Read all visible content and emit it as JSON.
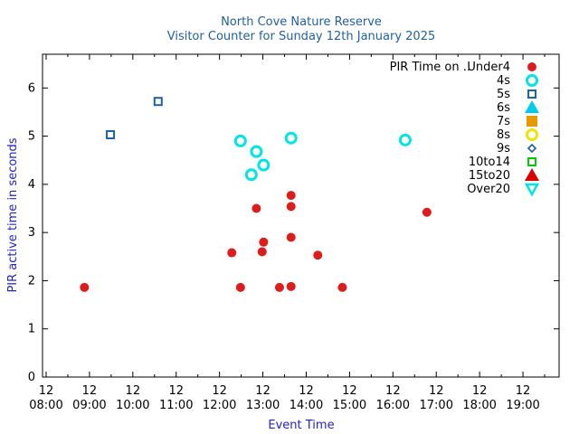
{
  "chart_data": {
    "type": "scatter",
    "title": "North Cove Nature Reserve",
    "subtitle": "Visitor Counter for Sunday 12th January 2025",
    "xlabel": "Event Time",
    "ylabel": "PIR active time in seconds",
    "x_ticks": [
      {
        "day": "12",
        "time": "08:00"
      },
      {
        "day": "12",
        "time": "09:00"
      },
      {
        "day": "12",
        "time": "10:00"
      },
      {
        "day": "12",
        "time": "11:00"
      },
      {
        "day": "12",
        "time": "12:00"
      },
      {
        "day": "12",
        "time": "13:00"
      },
      {
        "day": "12",
        "time": "14:00"
      },
      {
        "day": "12",
        "time": "15:00"
      },
      {
        "day": "12",
        "time": "16:00"
      },
      {
        "day": "12",
        "time": "17:00"
      },
      {
        "day": "12",
        "time": "18:00"
      },
      {
        "day": "12",
        "time": "19:00"
      }
    ],
    "xlim": [
      "07:55",
      "19:50"
    ],
    "ylim": [
      0,
      6.7
    ],
    "y_ticks": [
      "0",
      "1",
      "2",
      "3",
      "4",
      "5",
      "6"
    ],
    "grid": false,
    "legend_title": "PIR Time on ..",
    "legend_position": "top-right",
    "series": [
      {
        "name": "Under4",
        "marker": "circle-filled",
        "color": "#dd1c1c",
        "points": [
          {
            "x": "08:53",
            "y": 1.86
          },
          {
            "x": "12:17",
            "y": 2.58
          },
          {
            "x": "12:29",
            "y": 1.86
          },
          {
            "x": "12:51",
            "y": 3.5
          },
          {
            "x": "12:59",
            "y": 2.6
          },
          {
            "x": "13:01",
            "y": 2.8
          },
          {
            "x": "13:23",
            "y": 1.86
          },
          {
            "x": "13:39",
            "y": 3.77
          },
          {
            "x": "13:39",
            "y": 3.54
          },
          {
            "x": "13:39",
            "y": 2.9
          },
          {
            "x": "13:39",
            "y": 1.88
          },
          {
            "x": "14:16",
            "y": 2.53
          },
          {
            "x": "14:50",
            "y": 1.86
          },
          {
            "x": "16:47",
            "y": 3.42
          }
        ]
      },
      {
        "name": "4s",
        "marker": "circle-open",
        "color": "#00e5e5",
        "points": [
          {
            "x": "12:29",
            "y": 4.9
          },
          {
            "x": "12:44",
            "y": 4.2
          },
          {
            "x": "12:51",
            "y": 4.68
          },
          {
            "x": "13:01",
            "y": 4.4
          },
          {
            "x": "13:39",
            "y": 4.96
          },
          {
            "x": "16:17",
            "y": 4.92
          }
        ]
      },
      {
        "name": "5s",
        "marker": "square-open",
        "color": "#1a63a8",
        "points": [
          {
            "x": "09:29",
            "y": 5.03
          },
          {
            "x": "10:35",
            "y": 5.72
          }
        ]
      },
      {
        "name": "6s",
        "marker": "triangle-filled",
        "color": "#00ccee",
        "points": []
      },
      {
        "name": "7s",
        "marker": "square-filled",
        "color": "#e69a00",
        "points": []
      },
      {
        "name": "8s",
        "marker": "circle-open",
        "color": "#f2e300",
        "points": []
      },
      {
        "name": "9s",
        "marker": "diamond-open",
        "color": "#1a5fa8",
        "points": []
      },
      {
        "name": "10to14",
        "marker": "square-open",
        "color": "#00cc00",
        "points": []
      },
      {
        "name": "15to20",
        "marker": "triangle-filled",
        "color": "#dd0000",
        "points": []
      },
      {
        "name": "Over20",
        "marker": "triangle-down-open",
        "color": "#00e5e5",
        "points": []
      }
    ]
  }
}
